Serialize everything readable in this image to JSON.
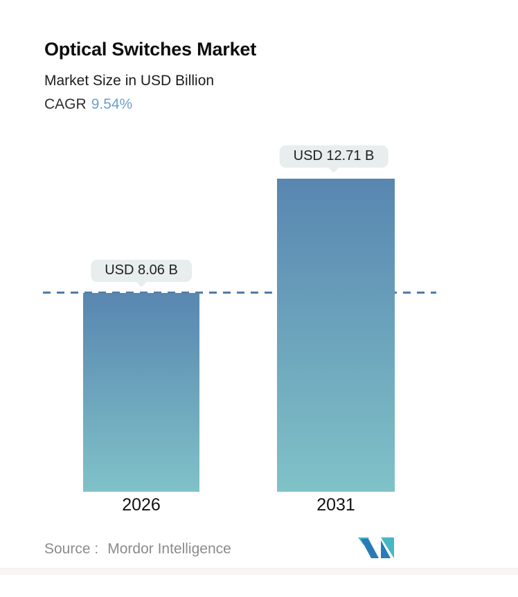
{
  "page": {
    "title": "Optical Switches Market",
    "subtitle": "Market Size in USD Billion",
    "cagr_label": "CAGR",
    "cagr_value": "9.54%"
  },
  "chart_data": {
    "type": "bar",
    "title": "Optical Switches Market",
    "subtitle": "Market Size in USD Billion",
    "unit": "USD Billion",
    "cagr_percent": 9.54,
    "categories": [
      "2026",
      "2031"
    ],
    "values": [
      8.06,
      12.71
    ],
    "value_labels": [
      "USD 8.06 B",
      "USD 12.71 B"
    ],
    "baseline": {
      "value": 8.06,
      "style": "dashed",
      "color": "#4d7ca6"
    },
    "ylim": [
      0,
      12.71
    ],
    "grid": "off",
    "legend": "none",
    "bar_gradient_top": "#5886b0",
    "bar_gradient_bottom": "#80c2c8"
  },
  "footer": {
    "source_label": "Source :",
    "source_name": "Mordor Intelligence",
    "logo_name": "mordor-intelligence-logo",
    "logo_teal": "#47b7c4",
    "logo_blue": "#2a7ab8"
  },
  "colors": {
    "accent_blue": "#6d9fcb",
    "badge_bg": "#e8edee",
    "text_dark": "#111111",
    "text_gray": "#8b8b8b",
    "background": "#ffffff"
  }
}
